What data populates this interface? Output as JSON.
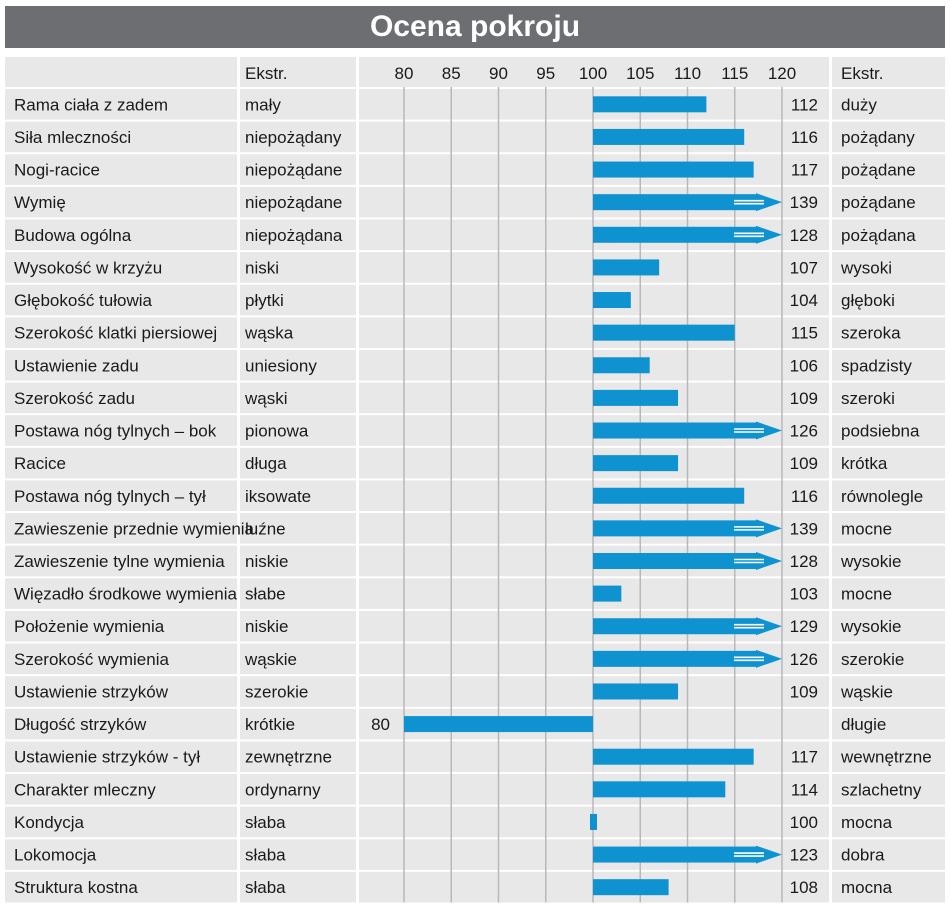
{
  "title": "Ocena pokroju",
  "header": {
    "ekstr_left": "Ekstr.",
    "ekstr_right": "Ekstr."
  },
  "colors": {
    "bar": "#0e92d0",
    "header_bg": "#6d6e71",
    "row_bg": "#e8e8e9",
    "grid": "#b7b8ba"
  },
  "chart_data": {
    "type": "bar",
    "orientation": "horizontal",
    "baseline": 100,
    "xlim": [
      80,
      120
    ],
    "ticks": [
      80,
      85,
      90,
      95,
      100,
      105,
      110,
      115,
      120
    ],
    "overflow_marker": "arrow beyond 120",
    "rows": [
      {
        "trait": "Rama ciała z zadem",
        "low": "mały",
        "value": 112,
        "high": "duży"
      },
      {
        "trait": "Siła mleczności",
        "low": "niepożądany",
        "value": 116,
        "high": "pożądany"
      },
      {
        "trait": "Nogi-racice",
        "low": "niepożądane",
        "value": 117,
        "high": "pożądane"
      },
      {
        "trait": "Wymię",
        "low": "niepożądane",
        "value": 139,
        "high": "pożądane"
      },
      {
        "trait": "Budowa ogólna",
        "low": "niepożądana",
        "value": 128,
        "high": "pożądana"
      },
      {
        "trait": "Wysokość w krzyżu",
        "low": "niski",
        "value": 107,
        "high": "wysoki"
      },
      {
        "trait": "Głębokość tułowia",
        "low": "płytki",
        "value": 104,
        "high": "głęboki"
      },
      {
        "trait": "Szerokość klatki piersiowej",
        "low": "wąska",
        "value": 115,
        "high": "szeroka"
      },
      {
        "trait": "Ustawienie zadu",
        "low": "uniesiony",
        "value": 106,
        "high": "spadzisty"
      },
      {
        "trait": "Szerokość zadu",
        "low": "wąski",
        "value": 109,
        "high": "szeroki"
      },
      {
        "trait": "Postawa nóg tylnych –  bok",
        "low": "pionowa",
        "value": 126,
        "high": "podsiebna"
      },
      {
        "trait": "Racice",
        "low": "długa",
        "value": 109,
        "high": "krótka"
      },
      {
        "trait": "Postawa nóg tylnych –  tył",
        "low": "iksowate",
        "value": 116,
        "high": "równolegle"
      },
      {
        "trait": "Zawieszenie przednie wymienia",
        "low": "luźne",
        "value": 139,
        "high": "mocne"
      },
      {
        "trait": "Zawieszenie tylne wymienia",
        "low": "niskie",
        "value": 128,
        "high": "wysokie"
      },
      {
        "trait": "Więzadło środkowe wymienia",
        "low": "słabe",
        "value": 103,
        "high": "mocne"
      },
      {
        "trait": "Położenie wymienia",
        "low": "niskie",
        "value": 129,
        "high": "wysokie"
      },
      {
        "trait": "Szerokość wymienia",
        "low": "wąskie",
        "value": 126,
        "high": "szerokie"
      },
      {
        "trait": "Ustawienie strzyków",
        "low": "szerokie",
        "value": 109,
        "high": "wąskie"
      },
      {
        "trait": "Długość strzyków",
        "low": "krótkie",
        "value": 80,
        "high": "długie"
      },
      {
        "trait": "Ustawienie strzyków - tył",
        "low": "zewnętrzne",
        "value": 117,
        "high": "wewnętrzne"
      },
      {
        "trait": "Charakter mleczny",
        "low": "ordynarny",
        "value": 114,
        "high": "szlachetny"
      },
      {
        "trait": "Kondycja",
        "low": "słaba",
        "value": 100,
        "high": "mocna"
      },
      {
        "trait": "Lokomocja",
        "low": "słaba",
        "value": 123,
        "high": "dobra"
      },
      {
        "trait": "Struktura kostna",
        "low": "słaba",
        "value": 108,
        "high": "mocna"
      }
    ]
  }
}
